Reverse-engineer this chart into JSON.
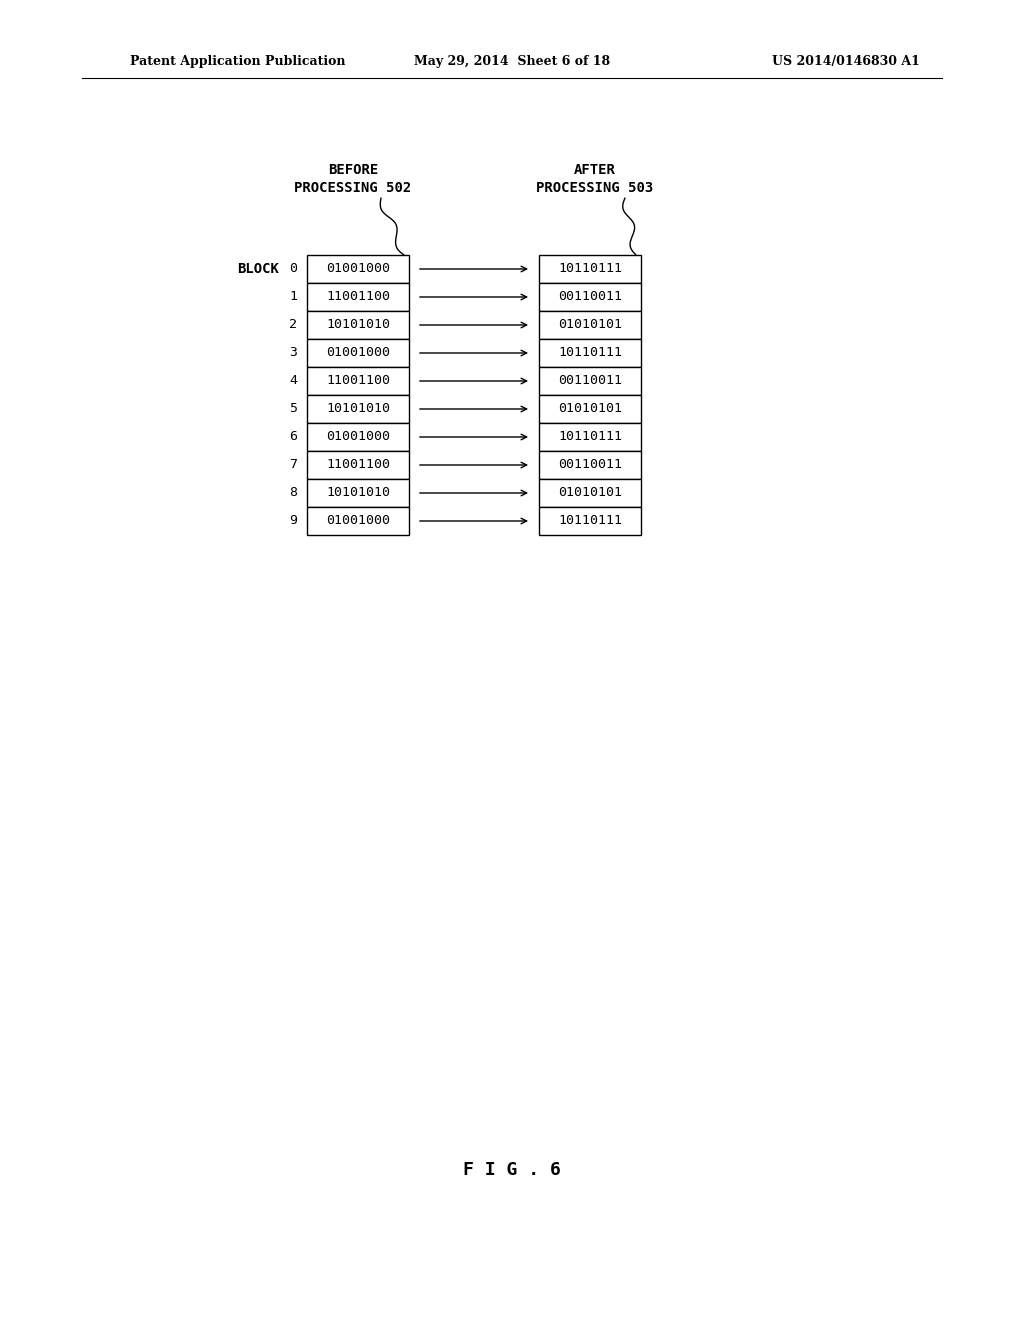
{
  "header_left": "Patent Application Publication",
  "header_center": "May 29, 2014  Sheet 6 of 18",
  "header_right": "US 2014/0146830 A1",
  "figure_label": "F I G . 6",
  "before_label_line1": "BEFORE",
  "before_label_line2": "PROCESSING",
  "before_ref": "502",
  "after_label_line1": "AFTER",
  "after_label_line2": "PROCESSING",
  "after_ref": "503",
  "block_label": "BLOCK",
  "blocks": [
    0,
    1,
    2,
    3,
    4,
    5,
    6,
    7,
    8,
    9
  ],
  "before_values": [
    "01001000",
    "11001100",
    "10101010",
    "01001000",
    "11001100",
    "10101010",
    "01001000",
    "11001100",
    "10101010",
    "01001000"
  ],
  "after_values": [
    "10110111",
    "00110011",
    "01010101",
    "10110111",
    "00110011",
    "01010101",
    "10110111",
    "00110011",
    "01010101",
    "10110111"
  ],
  "bg_color": "#ffffff",
  "text_color": "#000000"
}
